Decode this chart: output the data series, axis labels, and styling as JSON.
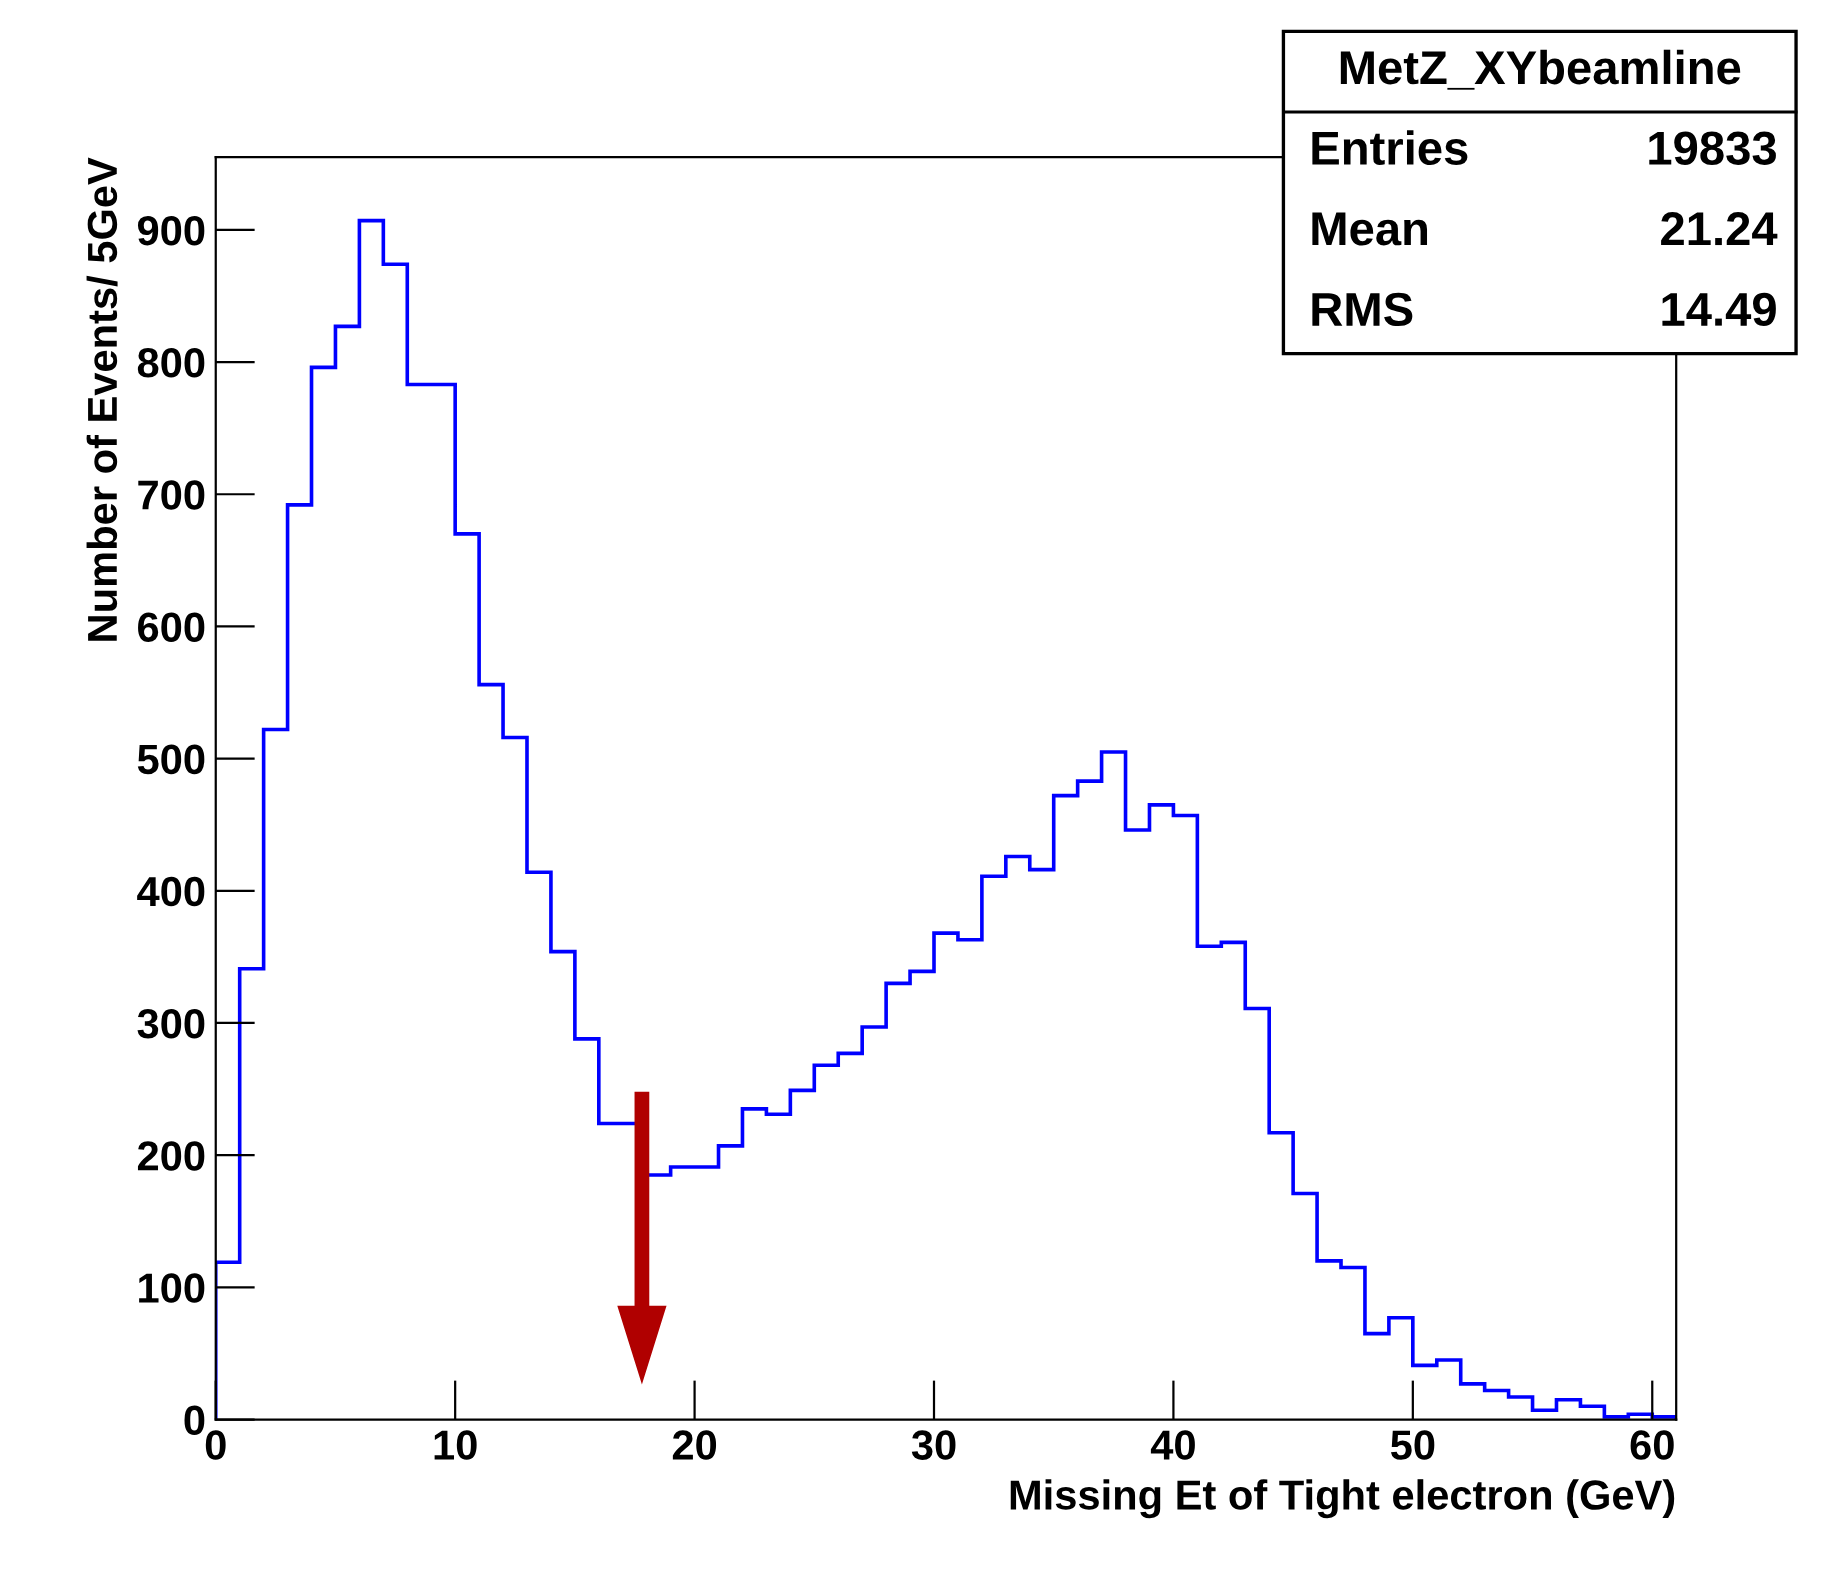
{
  "chart_data": {
    "type": "histogram",
    "xlabel": "Missing Et of Tight electron (GeV)",
    "ylabel": "Number of Events/ 5GeV",
    "bins": [
      0,
      1,
      2,
      3,
      4,
      5,
      6,
      7,
      8,
      9,
      10,
      11,
      12,
      13,
      14,
      15,
      16,
      17,
      18,
      19,
      20,
      21,
      22,
      23,
      24,
      25,
      26,
      27,
      28,
      29,
      30,
      31,
      32,
      33,
      34,
      35,
      36,
      37,
      38,
      39,
      40,
      41,
      42,
      43,
      44,
      45,
      46,
      47,
      48,
      49,
      50,
      51,
      52,
      53,
      54,
      55,
      56,
      57,
      58,
      59,
      60,
      61
    ],
    "values": [
      119,
      341,
      522,
      692,
      796,
      827,
      907,
      874,
      783,
      783,
      670,
      556,
      516,
      414,
      354,
      288,
      224,
      224,
      185,
      191,
      191,
      207,
      235,
      231,
      249,
      268,
      277,
      297,
      330,
      339,
      368,
      363,
      411,
      426,
      416,
      472,
      483,
      505,
      446,
      465,
      457,
      358,
      361,
      311,
      217,
      171,
      120,
      115,
      65,
      77,
      41,
      45,
      27,
      22,
      17,
      7,
      15,
      10,
      2,
      4,
      2
    ],
    "color": "#0000ff",
    "xlim": [
      0,
      61
    ],
    "ylim": [
      0,
      955
    ],
    "xticks": [
      0,
      10,
      20,
      30,
      40,
      50,
      60
    ],
    "yticks": [
      0,
      100,
      200,
      300,
      400,
      500,
      600,
      700,
      800,
      900
    ],
    "grid": false,
    "annotations": [
      "MetZ_XYbeamline",
      "Entries",
      "19833",
      "Mean",
      "21.24",
      "RMS",
      "14.49"
    ]
  }
}
